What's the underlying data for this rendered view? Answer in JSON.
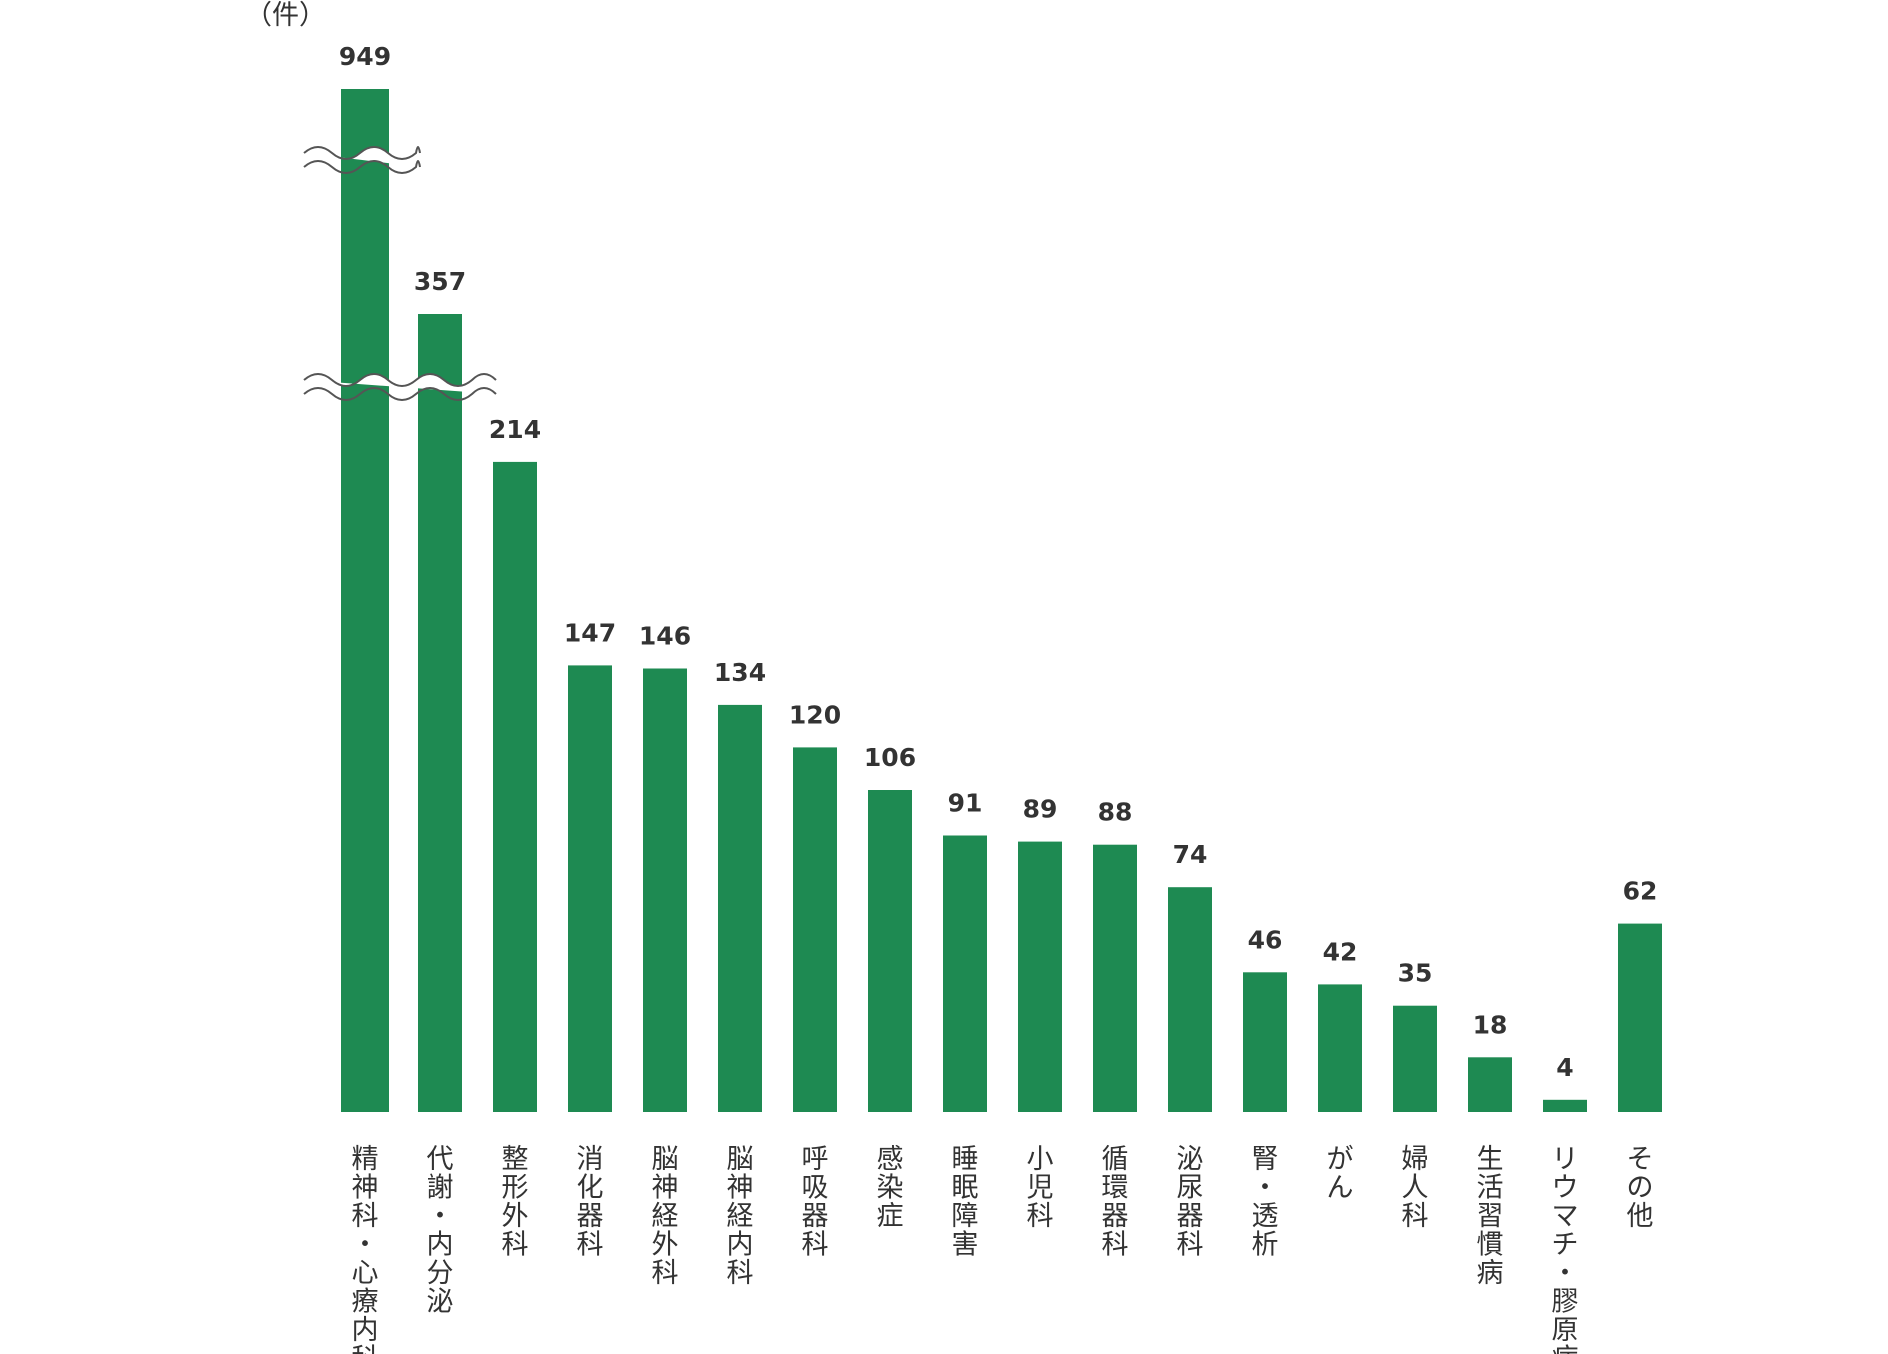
{
  "chart_data": {
    "type": "bar",
    "unit_label": "（件）",
    "categories": [
      "精神科・心療内科",
      "代謝・内分泌",
      "整形外科",
      "消化器科",
      "脳神経外科",
      "脳神経内科",
      "呼吸器科",
      "感染症",
      "睡眠障害",
      "小児科",
      "循環器科",
      "泌尿器科",
      "腎・透析",
      "がん",
      "婦人科",
      "生活習慣病",
      "リウマチ・膠原病",
      "その他"
    ],
    "values": [
      949,
      357,
      214,
      147,
      146,
      134,
      120,
      106,
      91,
      89,
      88,
      74,
      46,
      42,
      35,
      18,
      4,
      62
    ],
    "axis_break": true,
    "bar_color": "#1e8a52"
  }
}
